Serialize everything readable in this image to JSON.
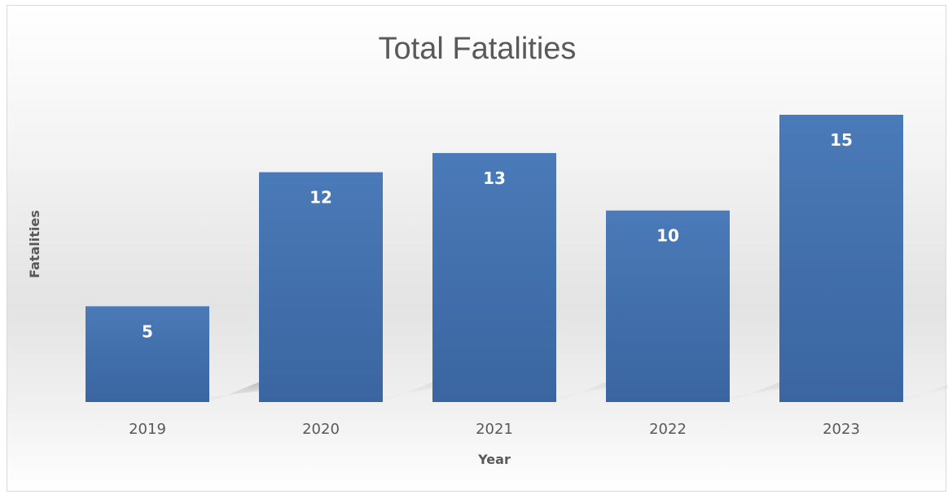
{
  "chart_data": {
    "type": "bar",
    "title": "Total Fatalities",
    "xlabel": "Year",
    "ylabel": "Fatalities",
    "categories": [
      "2019",
      "2020",
      "2021",
      "2022",
      "2023"
    ],
    "values": [
      5,
      12,
      13,
      10,
      15
    ],
    "ylim": [
      0,
      15
    ],
    "grid": false,
    "legend": "none",
    "bar_color": "#4a7ab8",
    "bar_color_dark": "#3a65a0",
    "data_labels": [
      "5",
      "12",
      "13",
      "10",
      "15"
    ]
  }
}
